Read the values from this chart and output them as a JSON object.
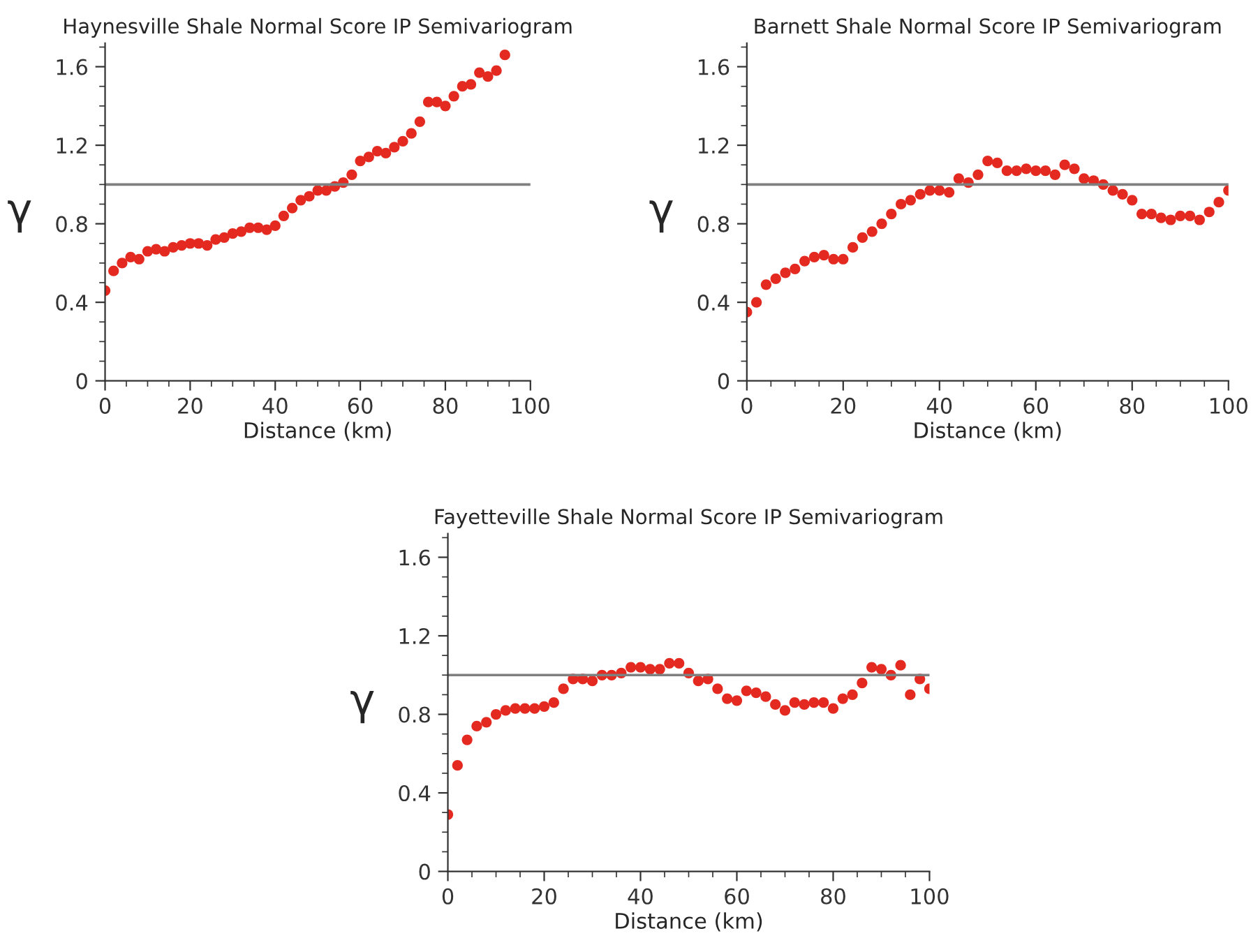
{
  "chart_data": [
    {
      "type": "scatter",
      "title": "Haynesville Shale Normal Score IP Semivariogram",
      "xlabel": "Distance (km)",
      "ylabel": "γ",
      "series": [
        {
          "color": "#e42a20",
          "x": [
            0,
            2,
            4,
            6,
            8,
            10,
            12,
            14,
            16,
            18,
            20,
            22,
            24,
            26,
            28,
            30,
            32,
            34,
            36,
            38,
            40,
            42,
            44,
            46,
            48,
            50,
            52,
            54,
            56,
            58,
            60,
            62,
            64,
            66,
            68,
            70,
            72,
            74,
            76,
            78,
            80,
            82,
            84,
            86,
            88,
            90,
            92,
            94
          ],
          "values": [
            0.46,
            0.56,
            0.6,
            0.63,
            0.62,
            0.66,
            0.67,
            0.66,
            0.68,
            0.69,
            0.7,
            0.7,
            0.69,
            0.72,
            0.73,
            0.75,
            0.76,
            0.78,
            0.78,
            0.77,
            0.79,
            0.84,
            0.88,
            0.92,
            0.94,
            0.97,
            0.97,
            0.99,
            1.01,
            1.05,
            1.12,
            1.14,
            1.17,
            1.16,
            1.19,
            1.22,
            1.26,
            1.32,
            1.42,
            1.42,
            1.4,
            1.45,
            1.5,
            1.51,
            1.57,
            1.55,
            1.58,
            1.66
          ]
        }
      ],
      "xlim": [
        0,
        100
      ],
      "xticks": [
        0,
        20,
        40,
        60,
        80,
        100
      ],
      "ylim": [
        0,
        1.72
      ],
      "yticks": [
        0,
        0.4,
        0.8,
        1.2,
        1.6
      ],
      "ref_lines": [
        {
          "axis": "y",
          "value": 1,
          "color": "#7f7f7f"
        }
      ],
      "marker": "circle",
      "grid": false,
      "legend": false
    },
    {
      "type": "scatter",
      "title": "Barnett Shale Normal Score IP Semivariogram",
      "xlabel": "Distance (km)",
      "ylabel": "γ",
      "series": [
        {
          "color": "#e42a20",
          "x": [
            0,
            2,
            4,
            6,
            8,
            10,
            12,
            14,
            16,
            18,
            20,
            22,
            24,
            26,
            28,
            30,
            32,
            34,
            36,
            38,
            40,
            42,
            44,
            46,
            48,
            50,
            52,
            54,
            56,
            58,
            60,
            62,
            64,
            66,
            68,
            70,
            72,
            74,
            76,
            78,
            80,
            82,
            84,
            86,
            88,
            90,
            92,
            94,
            96,
            98,
            100
          ],
          "values": [
            0.35,
            0.4,
            0.49,
            0.52,
            0.55,
            0.57,
            0.61,
            0.63,
            0.64,
            0.62,
            0.62,
            0.68,
            0.73,
            0.76,
            0.8,
            0.85,
            0.9,
            0.92,
            0.95,
            0.97,
            0.97,
            0.96,
            1.03,
            1.01,
            1.05,
            1.12,
            1.11,
            1.07,
            1.07,
            1.08,
            1.07,
            1.07,
            1.05,
            1.1,
            1.08,
            1.03,
            1.02,
            1.0,
            0.97,
            0.95,
            0.92,
            0.85,
            0.85,
            0.83,
            0.82,
            0.84,
            0.84,
            0.82,
            0.86,
            0.91,
            0.97
          ]
        }
      ],
      "xlim": [
        0,
        100
      ],
      "xticks": [
        0,
        20,
        40,
        60,
        80,
        100
      ],
      "ylim": [
        0,
        1.72
      ],
      "yticks": [
        0,
        0.4,
        0.8,
        1.2,
        1.6
      ],
      "ref_lines": [
        {
          "axis": "y",
          "value": 1,
          "color": "#7f7f7f"
        }
      ],
      "marker": "circle",
      "grid": false,
      "legend": false
    },
    {
      "type": "scatter",
      "title": "Fayetteville Shale Normal Score IP Semivariogram",
      "xlabel": "Distance (km)",
      "ylabel": "γ",
      "series": [
        {
          "color": "#e42a20",
          "x": [
            0,
            2,
            4,
            6,
            8,
            10,
            12,
            14,
            16,
            18,
            20,
            22,
            24,
            26,
            28,
            30,
            32,
            34,
            36,
            38,
            40,
            42,
            44,
            46,
            48,
            50,
            52,
            54,
            56,
            58,
            60,
            62,
            64,
            66,
            68,
            70,
            72,
            74,
            76,
            78,
            80,
            82,
            84,
            86,
            88,
            90,
            92,
            94,
            96,
            98,
            100
          ],
          "values": [
            0.29,
            0.54,
            0.67,
            0.74,
            0.76,
            0.8,
            0.82,
            0.83,
            0.83,
            0.83,
            0.84,
            0.86,
            0.93,
            0.98,
            0.98,
            0.97,
            1.0,
            1.0,
            1.01,
            1.04,
            1.04,
            1.03,
            1.03,
            1.06,
            1.06,
            1.01,
            0.97,
            0.98,
            0.93,
            0.88,
            0.87,
            0.92,
            0.91,
            0.89,
            0.85,
            0.82,
            0.86,
            0.85,
            0.86,
            0.86,
            0.83,
            0.88,
            0.9,
            0.96,
            1.04,
            1.03,
            1.0,
            1.05,
            0.9,
            0.98,
            0.93
          ]
        }
      ],
      "xlim": [
        0,
        100
      ],
      "xticks": [
        0,
        20,
        40,
        60,
        80,
        100
      ],
      "ylim": [
        0,
        1.72
      ],
      "yticks": [
        0,
        0.4,
        0.8,
        1.2,
        1.6
      ],
      "ref_lines": [
        {
          "axis": "y",
          "value": 1,
          "color": "#7f7f7f"
        }
      ],
      "marker": "circle",
      "grid": false,
      "legend": false
    }
  ]
}
